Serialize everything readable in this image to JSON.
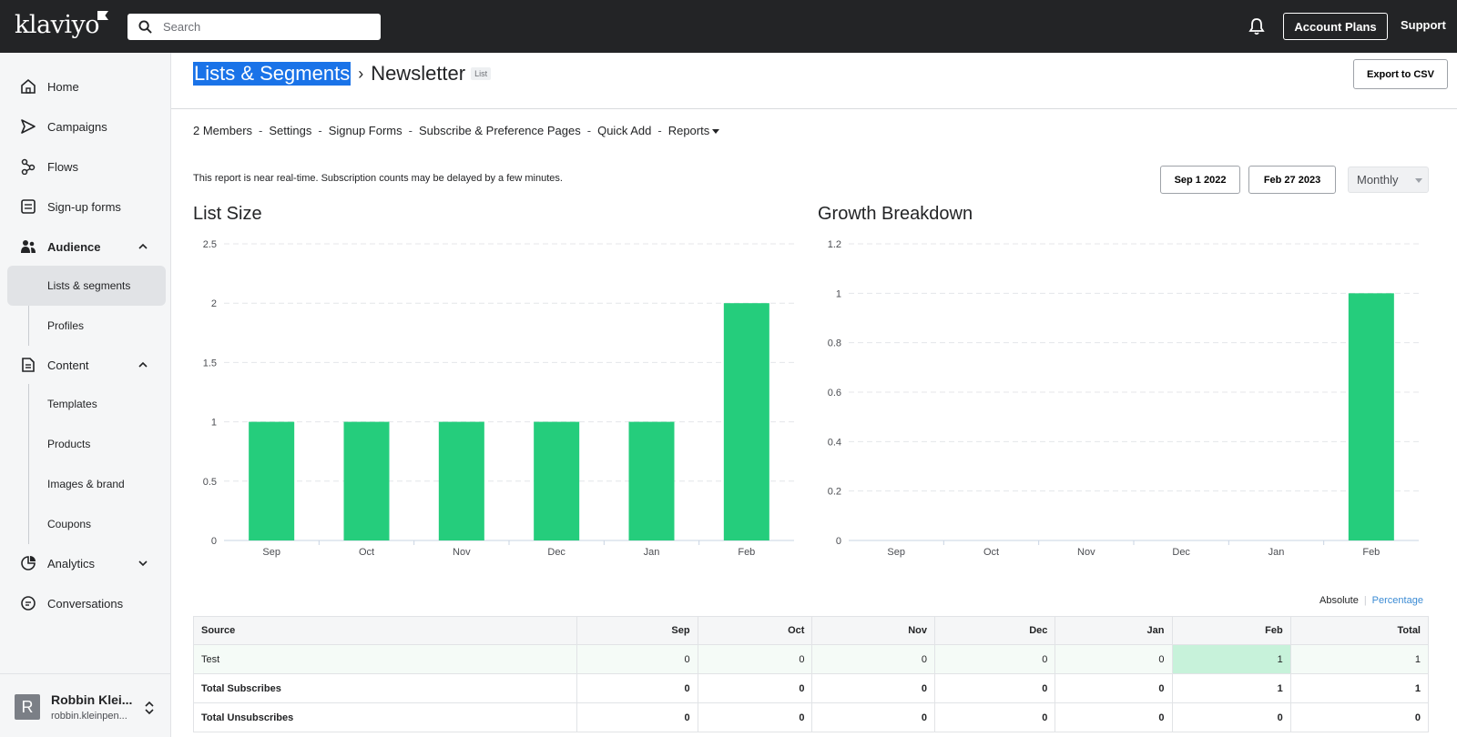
{
  "topbar": {
    "logo": "klaviyo",
    "search_placeholder": "Search",
    "account_plans": "Account Plans",
    "support": "Support"
  },
  "sidebar": {
    "items": [
      {
        "label": "Home",
        "icon": "home-icon"
      },
      {
        "label": "Campaigns",
        "icon": "send-icon"
      },
      {
        "label": "Flows",
        "icon": "flows-icon"
      },
      {
        "label": "Sign-up forms",
        "icon": "form-icon"
      },
      {
        "label": "Audience",
        "icon": "audience-icon"
      },
      {
        "label": "Content",
        "icon": "content-icon"
      },
      {
        "label": "Analytics",
        "icon": "analytics-icon"
      },
      {
        "label": "Conversations",
        "icon": "chat-icon"
      }
    ],
    "audience_sub": [
      "Lists & segments",
      "Profiles"
    ],
    "content_sub": [
      "Templates",
      "Products",
      "Images & brand",
      "Coupons"
    ],
    "user": {
      "initial": "R",
      "name": "Robbin Klei...",
      "email": "robbin.kleinpen..."
    }
  },
  "main": {
    "crumb_root": "Lists & Segments",
    "crumb_page": "Newsletter",
    "crumb_tag": "List",
    "export": "Export to CSV",
    "subnav": [
      "2 Members",
      "Settings",
      "Signup Forms",
      "Subscribe & Preference Pages",
      "Quick Add",
      "Reports"
    ],
    "note": "This report is near real-time. Subscription counts may be delayed by a few minutes.",
    "date_start": "Sep 1 2022",
    "date_end": "Feb 27 2023",
    "interval": "Monthly",
    "toggle_absolute": "Absolute",
    "toggle_percentage": "Percentage"
  },
  "colors": {
    "bar": "#25cd7c",
    "topbar": "#232426",
    "highlight": "#1a73e8"
  },
  "chart_data": [
    {
      "type": "bar",
      "title": "List Size",
      "categories": [
        "Sep",
        "Oct",
        "Nov",
        "Dec",
        "Jan",
        "Feb"
      ],
      "values": [
        1,
        1,
        1,
        1,
        1,
        2
      ],
      "yticks": [
        "0",
        "0.5",
        "1",
        "1.5",
        "2",
        "2.5"
      ],
      "ylim": [
        0,
        2.5
      ],
      "grid": true
    },
    {
      "type": "bar",
      "title": "Growth Breakdown",
      "categories": [
        "Sep",
        "Oct",
        "Nov",
        "Dec",
        "Jan",
        "Feb"
      ],
      "values": [
        0,
        0,
        0,
        0,
        0,
        1
      ],
      "yticks": [
        "0",
        "0.2",
        "0.4",
        "0.6",
        "0.8",
        "1",
        "1.2"
      ],
      "ylim": [
        0,
        1.2
      ],
      "grid": true
    }
  ],
  "table": {
    "headers": [
      "Source",
      "Sep",
      "Oct",
      "Nov",
      "Dec",
      "Jan",
      "Feb",
      "Total"
    ],
    "rows": [
      {
        "label": "Test",
        "values": [
          "0",
          "0",
          "0",
          "0",
          "0",
          "1",
          "1"
        ]
      },
      {
        "label": "Total Subscribes",
        "values": [
          "0",
          "0",
          "0",
          "0",
          "0",
          "1",
          "1"
        ]
      },
      {
        "label": "Total Unsubscribes",
        "values": [
          "0",
          "0",
          "0",
          "0",
          "0",
          "0",
          "0"
        ]
      }
    ]
  }
}
